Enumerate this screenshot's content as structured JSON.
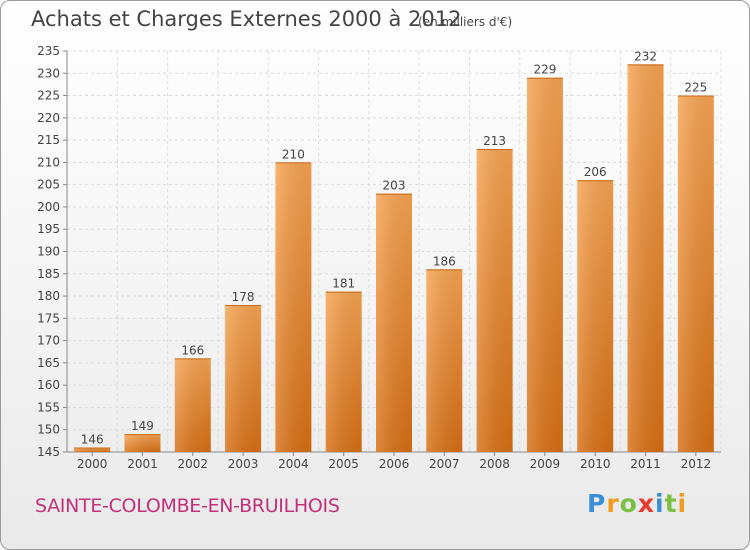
{
  "chart_data": {
    "type": "bar",
    "title": "Achats et Charges Externes 2000 à 2012",
    "subtitle": "(en milliers d'€)",
    "categories": [
      "2000",
      "2001",
      "2002",
      "2003",
      "2004",
      "2005",
      "2006",
      "2007",
      "2008",
      "2009",
      "2010",
      "2011",
      "2012"
    ],
    "values": [
      146,
      149,
      166,
      178,
      210,
      181,
      203,
      186,
      213,
      229,
      206,
      232,
      225
    ],
    "data_labels": [
      "146",
      "149",
      "166",
      "178",
      "210",
      "181",
      "203",
      "186",
      "213",
      "229",
      "206",
      "232",
      "225"
    ],
    "ylim": [
      145,
      235
    ],
    "yticks": [
      145,
      150,
      155,
      160,
      165,
      170,
      175,
      180,
      185,
      190,
      195,
      200,
      205,
      210,
      215,
      220,
      225,
      230,
      235
    ],
    "grid": true,
    "bar_color": "#f08a30",
    "legend": "none"
  },
  "footer": {
    "commune": "SAINTE-COLOMBE-EN-BRUILHOIS",
    "logo": "Proxiti",
    "commune_color": "#c5307a"
  }
}
